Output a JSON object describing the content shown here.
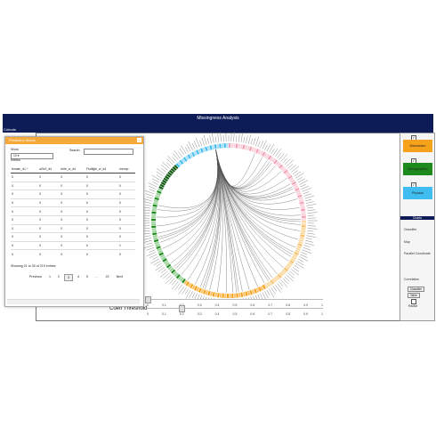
{
  "header": {
    "title": "Missingness Analysis",
    "sub_tab": "Cohorts"
  },
  "dialog": {
    "title": "Prediction Matrix",
    "show_label": "Show",
    "entries_value": "10",
    "entries_label": "entries",
    "search_label": "Search:",
    "columns": [
      "female_d1 ^",
      "a2lv2_d4",
      "birth_w_d4",
      "Fruitlgth_w_d4",
      "menop"
    ],
    "rows": [
      [
        "0",
        "0",
        "0",
        "0",
        "0"
      ],
      [
        "0",
        "0",
        "0",
        "0",
        "0"
      ],
      [
        "0",
        "0",
        "0",
        "0",
        "0"
      ],
      [
        "0",
        "0",
        "0",
        "0",
        "0"
      ],
      [
        "0",
        "0",
        "0",
        "0",
        "0"
      ],
      [
        "0",
        "0",
        "0",
        "0",
        "0"
      ],
      [
        "0",
        "0",
        "0",
        "0",
        "0"
      ],
      [
        "0",
        "0",
        "0",
        "0",
        "0"
      ],
      [
        "0",
        "0",
        "0",
        "0",
        "1"
      ],
      [
        "0",
        "0",
        "0",
        "0",
        "0"
      ]
    ],
    "info": "Showing 21 to 30 of 219 entries",
    "pager": {
      "previous": "Previous",
      "pages": [
        "1",
        "2",
        "3",
        "4",
        "5",
        "…",
        "22"
      ],
      "current": "3",
      "next": "Next"
    }
  },
  "main": {
    "coeff_label": "Coeff Threshold",
    "slider_ticks": [
      "0",
      "0.1",
      "0.2",
      "0.3",
      "0.4",
      "0.5",
      "0.6",
      "0.7",
      "0.8",
      "0.9",
      "1"
    ]
  },
  "right_panel": {
    "groups": [
      {
        "label": "Mechanism",
        "color": "#f7a21b",
        "checked": true
      },
      {
        "label": "Demographics",
        "color": "#1e8a1e",
        "checked": true
      },
      {
        "label": "Physical",
        "color": "#3fbdf0",
        "checked": true
      }
    ],
    "charts_header": "Charts",
    "charts": [
      "Classifier",
      "Map",
      "Parallel Coordinate"
    ],
    "correlation_label": "Correlation",
    "buttons": [
      "Classifier",
      "Table"
    ],
    "radial_label": "Radial"
  },
  "colors": {
    "navy": "#0d1b57",
    "orange": "#f7a21b",
    "green": "#1e8a1e",
    "blue": "#3fbdf0",
    "pink": "#f7bfc9"
  }
}
